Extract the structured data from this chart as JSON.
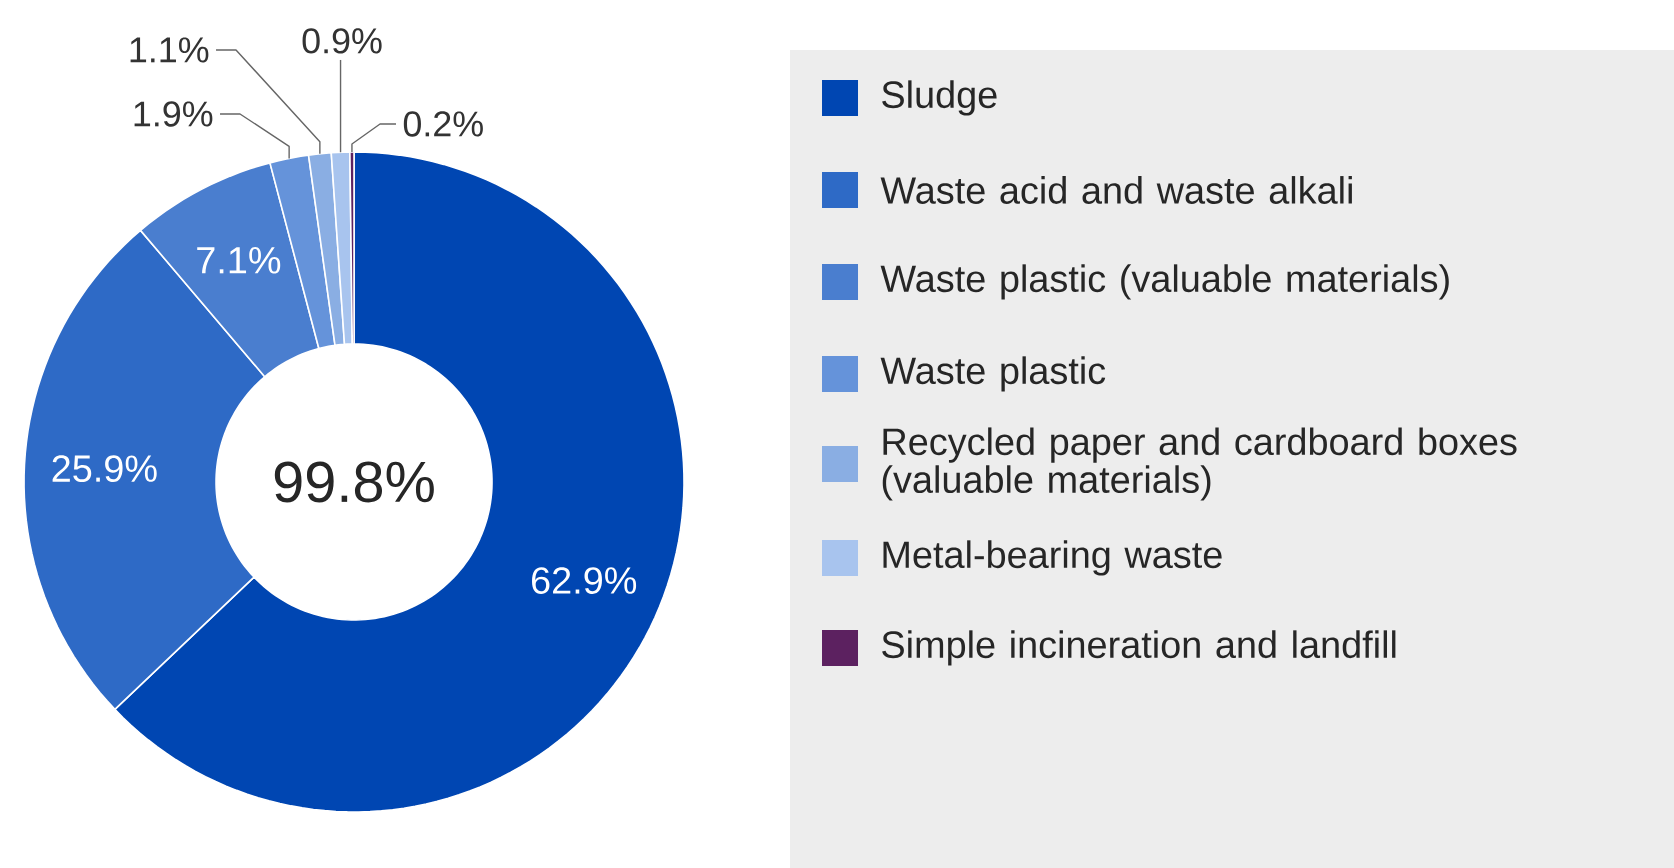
{
  "chart_data": {
    "type": "donut",
    "categories": [
      "Sludge",
      "Waste acid and waste alkali",
      "Waste plastic (valuable materials)",
      "Waste plastic",
      "Recycled paper and cardboard boxes (valuable materials)",
      "Metal-bearing waste",
      "Simple incineration and landfill"
    ],
    "values": [
      62.9,
      25.9,
      7.1,
      1.9,
      1.1,
      0.9,
      0.2
    ],
    "value_labels": [
      "62.9%",
      "25.9%",
      "7.1%",
      "1.9%",
      "1.1%",
      "0.9%",
      "0.2%"
    ],
    "colors": [
      "#0046b2",
      "#2e6ac6",
      "#4a7ecf",
      "#6593da",
      "#8aaee3",
      "#a8c4ee",
      "#5c2160"
    ],
    "legend": "right",
    "annotations": [
      "99.8%"
    ]
  }
}
